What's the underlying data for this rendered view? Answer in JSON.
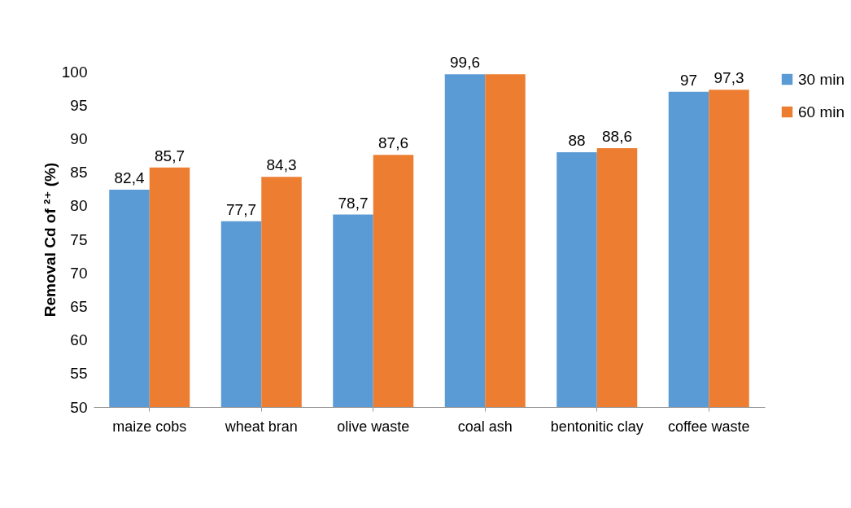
{
  "chart_data": {
    "type": "bar",
    "ylabel": "Removal Cd of ²⁺ (%)",
    "categories": [
      "maize cobs",
      "wheat bran",
      "olive waste",
      "coal ash",
      "bentonitic clay",
      "coffee waste"
    ],
    "series": [
      {
        "name": "30 min",
        "color": "#5b9bd5",
        "values": [
          82.4,
          77.7,
          78.7,
          99.6,
          88,
          97
        ],
        "value_labels": [
          "82,4",
          "77,7",
          "78,7",
          "99,6",
          "88",
          "97"
        ]
      },
      {
        "name": "60 min",
        "color": "#ed7d31",
        "values": [
          85.7,
          84.3,
          87.6,
          99.6,
          88.6,
          97.3
        ],
        "value_labels": [
          "85,7",
          "84,3",
          "87,6",
          null,
          "88,6",
          "97,3"
        ]
      }
    ],
    "ylim": [
      50,
      100
    ],
    "yticks": [
      50,
      55,
      60,
      65,
      70,
      75,
      80,
      85,
      90,
      95,
      100
    ],
    "grid": false,
    "legend": "right"
  }
}
